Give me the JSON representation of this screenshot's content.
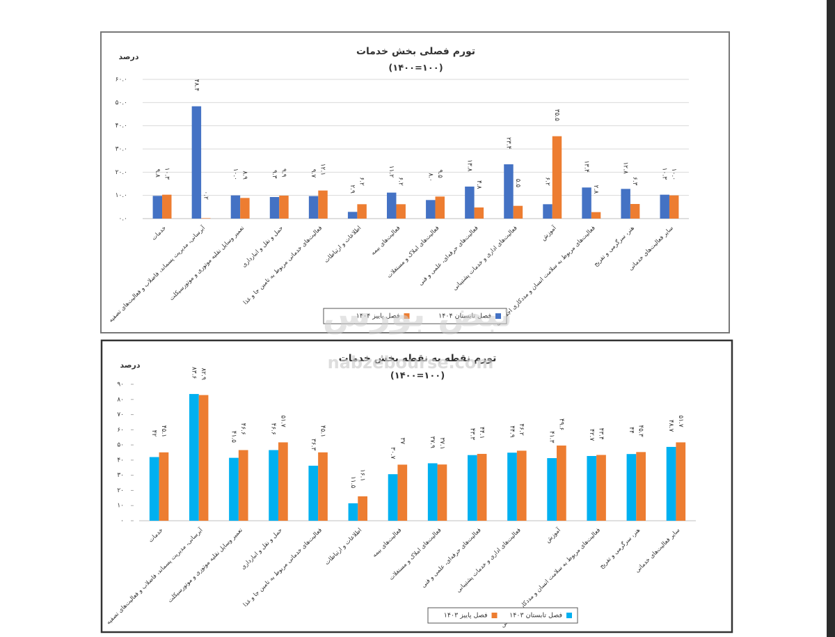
{
  "chart_data": [
    {
      "type": "bar",
      "title": "تورم فصلی بخش خدمات",
      "subtitle": "(۱۴۰۰=۱۰۰)",
      "y_label": "درصد",
      "categories": [
        "خدمات",
        "آبرسانی، مدیریت پسماند، فاضلاب و فعالیت‌های تصفیه",
        "تعمیر وسایل نقلیه موتوری و موتورسیکلت",
        "حمل و نقل و انبارداری",
        "فعالیت‌های خدماتی مربوط به تامین جا و غذا",
        "اطلاعات و ارتباطات",
        "فعالیت‌های بیمه",
        "فعالیت‌های املاک و مستغلات",
        "فعالیت‌های حرفه‌ای، علمی و فنی",
        "فعالیت‌های اداری و خدمات پشتیبانی",
        "آموزش",
        "فعالیت‌های مربوط به سلامت انسان و مددکاری اجتماعی",
        "هنر، سرگرمی و تفریح",
        "سایر فعالیت‌های خدماتی"
      ],
      "series": [
        {
          "name": "فصل تابستان ۱۴۰۴",
          "color": "#4472c4",
          "values": [
            9.8,
            48.4,
            10.0,
            9.3,
            9.7,
            2.9,
            11.2,
            8.0,
            13.8,
            23.4,
            6.2,
            13.4,
            12.8,
            10.3
          ],
          "value_labels": [
            "۹.۸",
            "۴۸.۴",
            "۱۰.۰",
            "۹.۳",
            "۹.۷",
            "۲.۹",
            "۱۱.۲",
            "۸.۰",
            "۱۳.۸",
            "۲۳.۴",
            "۶.۲",
            "۱۳.۴",
            "۱۲.۸",
            "۱۰.۳"
          ]
        },
        {
          "name": "فصل پاییز ۱۴۰۴",
          "color": "#ed7d31",
          "values": [
            10.3,
            0.2,
            8.9,
            9.9,
            12.1,
            6.2,
            6.2,
            9.5,
            4.8,
            5.5,
            35.5,
            2.8,
            6.3,
            10.0
          ],
          "value_labels": [
            "۱۰.۳",
            "۰.۲",
            "۸.۹",
            "۹.۹",
            "۱۲.۱",
            "۶.۲",
            "۶.۲",
            "۹.۵",
            "۴.۸",
            "۵.۵",
            "۳۵.۵",
            "۲.۸",
            "۶.۳",
            "۱۰.۰"
          ]
        }
      ],
      "ylim": [
        0,
        60
      ],
      "yticks": [
        {
          "value": 0,
          "label": "۰.۰"
        },
        {
          "value": 10,
          "label": "۱۰.۰"
        },
        {
          "value": 20,
          "label": "۲۰.۰"
        },
        {
          "value": 30,
          "label": "۳۰.۰"
        },
        {
          "value": 40,
          "label": "۴۰.۰"
        },
        {
          "value": 50,
          "label": "۵۰.۰"
        },
        {
          "value": 60,
          "label": "۶۰.۰"
        }
      ],
      "grid": true,
      "legend": "bottom"
    },
    {
      "type": "bar",
      "title": "تورم نقطه به نقطه بخش خدمات",
      "subtitle": "(۱۴۰۰=۱۰۰)",
      "y_label": "درصد",
      "categories": [
        "خدمات",
        "آبرسانی، مدیریت پسماند، فاضلاب و فعالیت‌های تصفیه",
        "تعمیر وسایل نقلیه موتوری و موتورسیکلت",
        "حمل و نقل و انبارداری",
        "فعالیت‌های خدماتی مربوط به تامین جا و غذا",
        "اطلاعات و ارتباطات",
        "فعالیت‌های بیمه",
        "فعالیت‌های املاک و مستغلات",
        "فعالیت‌های حرفه‌ای، علمی و فنی",
        "فعالیت‌های اداری و خدمات پشتیبانی",
        "آموزش",
        "فعالیت‌های مربوط به سلامت انسان و مددکاری اجتماعی",
        "هنر، سرگرمی و تفریح",
        "سایر فعالیت‌های خدماتی"
      ],
      "series": [
        {
          "name": "فصل تابستان ۱۴۰۳",
          "color": "#00b0f0",
          "values": [
            42,
            83.6,
            41.5,
            46.6,
            36.3,
            11.5,
            30.7,
            37.9,
            43.3,
            44.9,
            41.3,
            42.7,
            44,
            48.7
          ],
          "value_labels": [
            "۴۲",
            "۸۳.۶",
            "۴۱.۵",
            "۴۶.۶",
            "۳۶.۳",
            "۱۱.۵",
            "۳۰.۷",
            "۳۷.۹",
            "۴۳.۳",
            "۴۴.۹",
            "۴۱.۳",
            "۴۲.۷",
            "۴۴",
            "۴۸.۷"
          ]
        },
        {
          "name": "فصل پاییز ۱۴۰۳",
          "color": "#ed7d31",
          "values": [
            45.1,
            82.9,
            46.6,
            51.7,
            45.1,
            16.1,
            37,
            37.1,
            44.1,
            46.2,
            49.6,
            43.4,
            45.3,
            51.7
          ],
          "value_labels": [
            "۴۵.۱",
            "۸۲.۹",
            "۴۶.۶",
            "۵۱.۷",
            "۴۵.۱",
            "۱۶.۱",
            "۳۷",
            "۳۷.۱",
            "۴۴.۱",
            "۴۶.۲",
            "۴۹.۶",
            "۴۳.۴",
            "۴۵.۳",
            "۵۱.۷"
          ]
        }
      ],
      "ylim": [
        0,
        90
      ],
      "yticks": [
        {
          "value": 0,
          "label": "۰"
        },
        {
          "value": 10,
          "label": "۱۰"
        },
        {
          "value": 20,
          "label": "۲۰"
        },
        {
          "value": 30,
          "label": "۳۰"
        },
        {
          "value": 40,
          "label": "۴۰"
        },
        {
          "value": 50,
          "label": "۵۰"
        },
        {
          "value": 60,
          "label": "۶۰"
        },
        {
          "value": 70,
          "label": "۷۰"
        },
        {
          "value": 80,
          "label": "۸۰"
        },
        {
          "value": 90,
          "label": "۹۰"
        }
      ],
      "grid": false,
      "legend": "bottom"
    }
  ],
  "watermark": {
    "brand": "نبض بورس",
    "site": "nabzebourse.com"
  }
}
